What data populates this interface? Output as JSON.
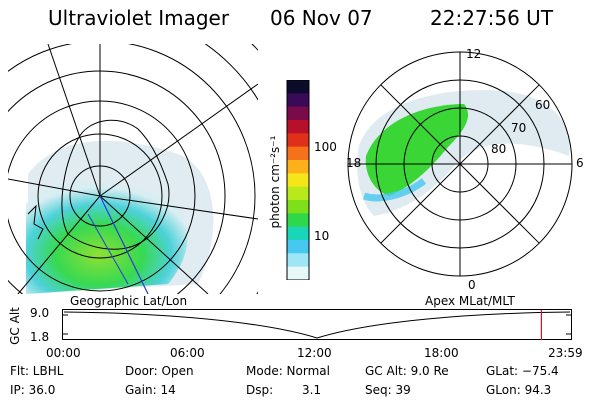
{
  "header": {
    "title": "Ultraviolet Imager",
    "date": "06 Nov 07",
    "time": "22:27:56 UT"
  },
  "geo_map": {
    "label": "Geographic Lat/Lon"
  },
  "polar_plot": {
    "label": "Apex MLat/MLT",
    "mlt_labels": {
      "top": "12",
      "right": "6",
      "bottom": "0",
      "left": "18"
    },
    "lat_labels": [
      "60",
      "70",
      "80"
    ]
  },
  "colorbar": {
    "unit_label": "photon cm⁻²s⁻¹",
    "tick_labels": [
      "100",
      "10"
    ],
    "colors": [
      "#0b0b2a",
      "#3a0a58",
      "#7a0a4a",
      "#b8102a",
      "#e0301a",
      "#f5721a",
      "#fdb01a",
      "#f5e61a",
      "#b8ea1a",
      "#7ee01a",
      "#2ed84a",
      "#1ad6b8",
      "#46c8f0",
      "#9ee6f5",
      "#e6f8f8"
    ]
  },
  "timeline": {
    "axis_title": "GC Alt",
    "y_ticks": [
      "9.0",
      "1.8"
    ],
    "x_ticks": [
      "00:00",
      "06:00",
      "12:00",
      "18:00",
      "23:59"
    ],
    "current_fraction": 0.94
  },
  "status": {
    "flt": "Flt: LBHL",
    "door": "Door: Open",
    "mode": "Mode: Normal",
    "gc_alt": "GC Alt: 9.0 Re",
    "glat": "GLat: −75.4",
    "ip": "IP: 36.0",
    "gain": "Gain: 14",
    "dsp_label": "Dsp:",
    "dsp_value": "3.1",
    "seq": "Seq: 39",
    "glon": "GLon:  94.3"
  }
}
